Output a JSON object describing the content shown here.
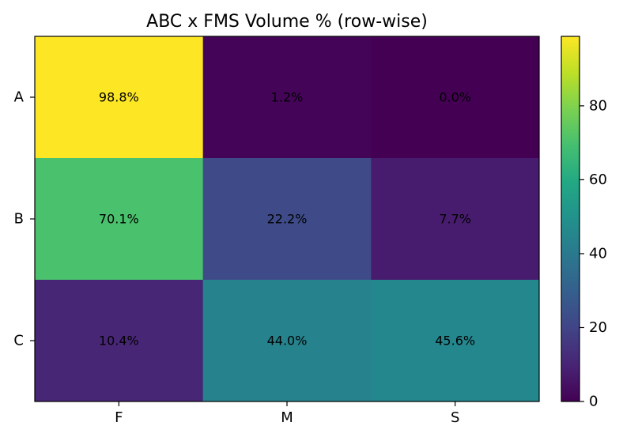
{
  "chart_data": {
    "type": "heatmap",
    "title": "ABC x FMS Volume % (row-wise)",
    "xlabel": "",
    "ylabel": "",
    "x_categories": [
      "F",
      "M",
      "S"
    ],
    "y_categories": [
      "A",
      "B",
      "C"
    ],
    "values": [
      [
        98.8,
        1.2,
        0.0
      ],
      [
        70.1,
        22.2,
        7.7
      ],
      [
        10.4,
        44.0,
        45.6
      ]
    ],
    "cell_labels": [
      [
        "98.8%",
        "1.2%",
        "0.0%"
      ],
      [
        "70.1%",
        "22.2%",
        "7.7%"
      ],
      [
        "10.4%",
        "44.0%",
        "45.6%"
      ]
    ],
    "colormap": "viridis",
    "vmin": 0.0,
    "vmax": 98.8,
    "colorbar_ticks": [
      0,
      20,
      40,
      60,
      80
    ],
    "colorbar_tick_labels": [
      "0",
      "20",
      "40",
      "60",
      "80"
    ],
    "grid": false
  }
}
